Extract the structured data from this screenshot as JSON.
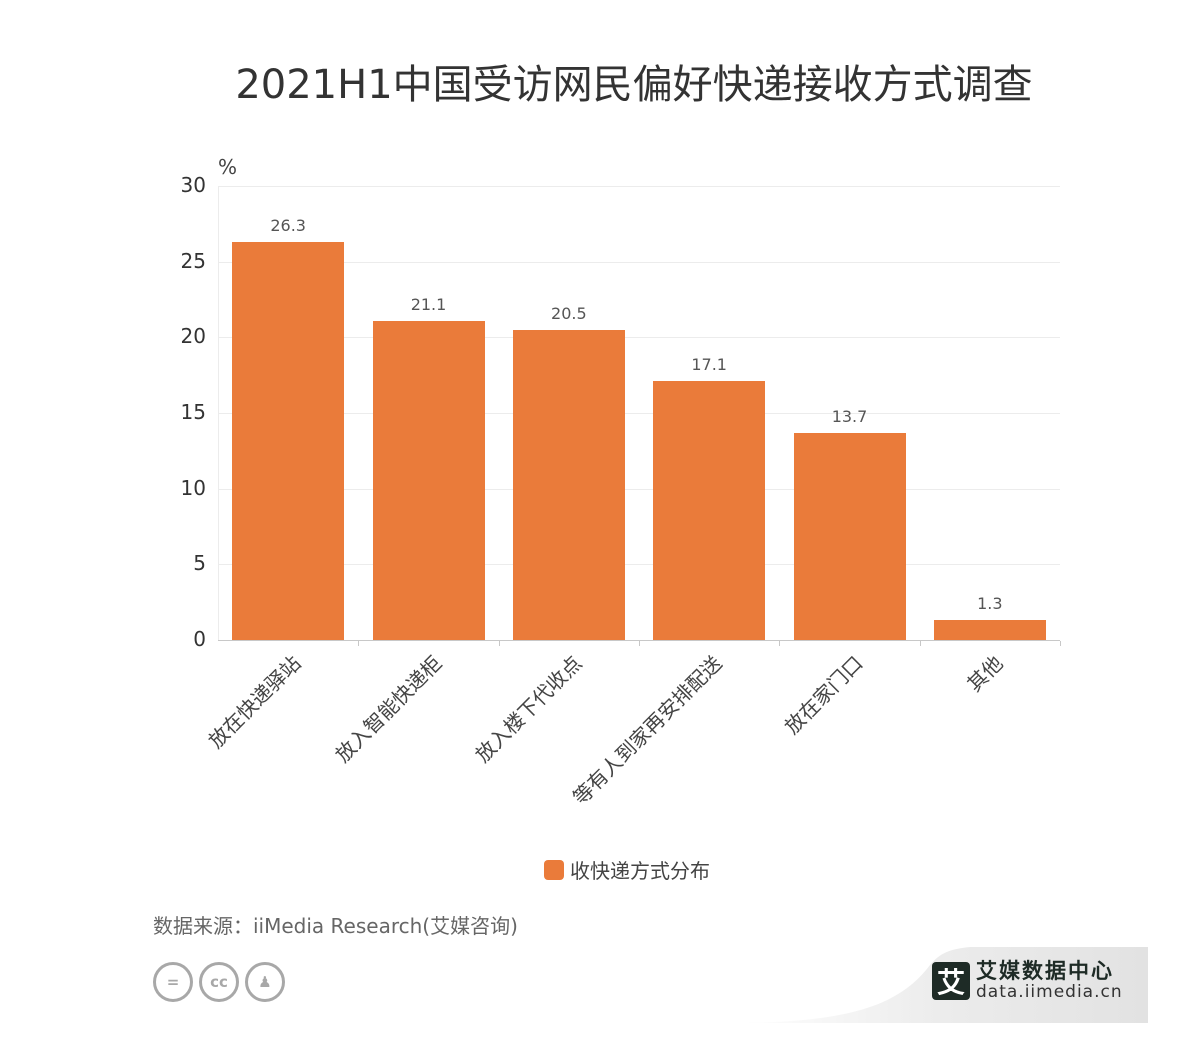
{
  "header": {
    "title": "2021H1中国受访网民偏好快递接收方式调查"
  },
  "chart_data": {
    "type": "bar",
    "title": "2021H1中国受访网民偏好快递接收方式调查",
    "xlabel": "",
    "ylabel": "%",
    "ylim": [
      0,
      30
    ],
    "yticks": [
      "0",
      "5",
      "10",
      "15",
      "20",
      "25",
      "30"
    ],
    "grid": true,
    "legend_position": "bottom",
    "categories": [
      "放在快递驿站",
      "放入智能快递柜",
      "放入楼下代收点",
      "等有人到家再安排配送",
      "放在家门口",
      "其他"
    ],
    "series": [
      {
        "name": "收快递方式分布",
        "color": "#ea7b3a",
        "values": [
          26.3,
          21.1,
          20.5,
          17.1,
          13.7,
          1.3
        ]
      }
    ],
    "value_labels": [
      "26.3",
      "21.1",
      "20.5",
      "17.1",
      "13.7",
      "1.3"
    ]
  },
  "legend": {
    "label": "收快递方式分布",
    "color": "#ea7b3a"
  },
  "footer": {
    "source": "数据来源：iiMedia Research(艾媒咨询)",
    "license_icons": [
      "cc-nd-icon",
      "cc-icon",
      "cc-by-icon"
    ],
    "license_glyphs": [
      "=",
      "cc",
      "♟"
    ],
    "brand_logo_char": "艾",
    "brand_name": "艾媒数据中心",
    "brand_url": "data.iimedia.cn"
  }
}
